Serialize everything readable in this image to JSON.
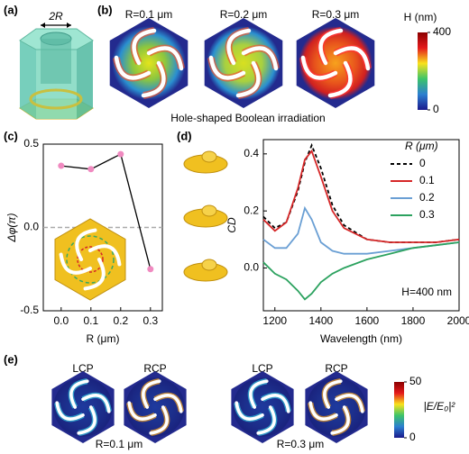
{
  "panel_labels": [
    "(a)",
    "(b)",
    "(c)",
    "(d)",
    "(e)"
  ],
  "a": {
    "dimension_label": "2R"
  },
  "b": {
    "titles": [
      "R=0.1 μm",
      "R=0.2 μm",
      "R=0.3 μm"
    ],
    "caption": "Hole-shaped Boolean irradiation",
    "colorbar": {
      "label": "H (nm)",
      "ticks": [
        0,
        400
      ]
    }
  },
  "e": {
    "polarizations": [
      "LCP",
      "RCP",
      "LCP",
      "RCP"
    ],
    "titles": [
      "R=0.1 μm",
      "R=0.3 μm"
    ],
    "colorbar": {
      "label": "|E/E₀|²",
      "ticks": [
        0,
        50
      ]
    }
  },
  "chart_data": [
    {
      "type": "line",
      "x": [
        0,
        0.1,
        0.2,
        0.3
      ],
      "values": [
        0.37,
        0.35,
        0.44,
        -0.25
      ],
      "color": "#000000",
      "marker_color": "#f08ac0",
      "xlim": [
        -0.06,
        0.34
      ],
      "ylim": [
        -0.5,
        0.5
      ],
      "xticks": [
        {
          "value": 0,
          "label": "0.0"
        },
        0.1,
        0.2,
        0.3
      ],
      "yticks": [
        -0.5,
        {
          "value": 0,
          "label": "0.0"
        },
        0.5
      ],
      "xlabel": "R (μm)",
      "ylabel": "Δφ(π)",
      "zero_line": true
    },
    {
      "type": "line",
      "x": [
        1150,
        1200,
        1250,
        1300,
        1330,
        1360,
        1400,
        1450,
        1500,
        1600,
        1700,
        1800,
        1900,
        2000
      ],
      "series": [
        {
          "name": "0",
          "color": "#000000",
          "dashed": true,
          "values": [
            0.18,
            0.14,
            0.16,
            0.27,
            0.37,
            0.43,
            0.35,
            0.22,
            0.15,
            0.1,
            0.09,
            0.09,
            0.09,
            0.1
          ]
        },
        {
          "name": "0.1",
          "color": "#d62728",
          "values": [
            0.17,
            0.13,
            0.16,
            0.28,
            0.38,
            0.41,
            0.32,
            0.2,
            0.14,
            0.1,
            0.09,
            0.09,
            0.09,
            0.1
          ]
        },
        {
          "name": "0.2",
          "color": "#6a9fd4",
          "values": [
            0.1,
            0.07,
            0.07,
            0.12,
            0.21,
            0.17,
            0.09,
            0.06,
            0.05,
            0.05,
            0.06,
            0.07,
            0.08,
            0.09
          ]
        },
        {
          "name": "0.3",
          "color": "#2ca25f",
          "values": [
            0.02,
            -0.02,
            -0.04,
            -0.08,
            -0.11,
            -0.09,
            -0.05,
            -0.02,
            0.0,
            0.03,
            0.05,
            0.07,
            0.08,
            0.09
          ]
        }
      ],
      "legend_title": "R (μm)",
      "legend": "upper right",
      "annotation": "H=400 nm",
      "xlim": [
        1150,
        2000
      ],
      "ylim": [
        -0.15,
        0.45
      ],
      "xticks": [
        1200,
        1400,
        1600,
        1800,
        2000
      ],
      "yticks": [
        {
          "value": 0,
          "label": "0.0"
        },
        0.2,
        0.4
      ],
      "xlabel": "Wavelength (nm)",
      "ylabel": "CD"
    }
  ]
}
